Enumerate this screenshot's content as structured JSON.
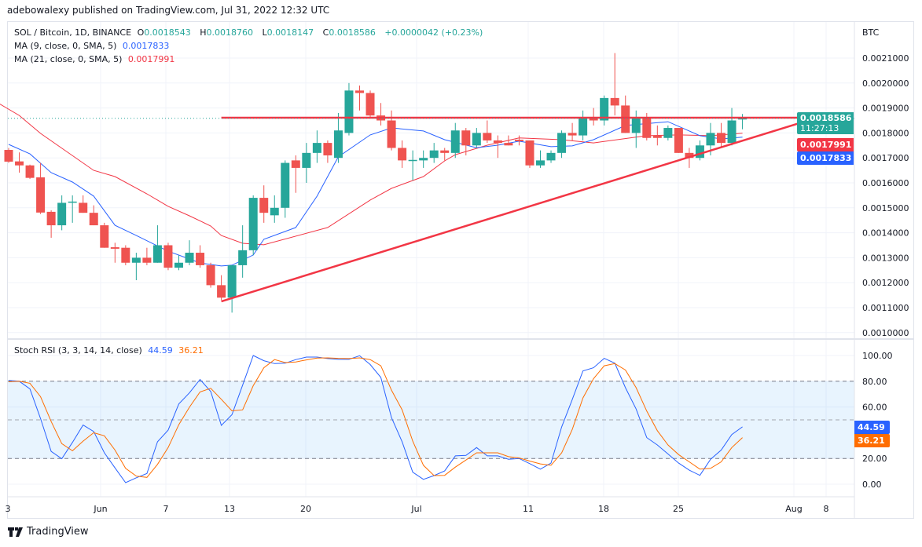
{
  "published": "adebowalexy published on TradingView.com, Jul 31, 2022 12:32 UTC",
  "legend": {
    "symbol": "SOL / Bitcoin, 1D, BINANCE",
    "o_label": "O",
    "o": "0.0018543",
    "h_label": "H",
    "h": "0.0018760",
    "l_label": "L",
    "l": "0.0018147",
    "c_label": "C",
    "c": "0.0018586",
    "change": "+0.0000042 (+0.23%)",
    "ma9_label": "MA (9, close, 0, SMA, 5)",
    "ma9_value": "0.0017833",
    "ma21_label": "MA (21, close, 0, SMA, 5)",
    "ma21_value": "0.0017991",
    "stoch_label": "Stoch RSI (3, 3, 14, 14, close)",
    "stoch_k": "44.59",
    "stoch_d": "36.21"
  },
  "price_axis": {
    "currency": "BTC",
    "ticks": [
      "0.0021000",
      "0.0020000",
      "0.0019000",
      "0.0018000",
      "0.0017000",
      "0.0016000",
      "0.0015000",
      "0.0014000",
      "0.0013000",
      "0.0012000",
      "0.0011000",
      "0.0010000"
    ],
    "last_price": "0.0018586",
    "countdown": "11:27:13",
    "ma21_badge": "0.0017991",
    "ma9_badge": "0.0017833"
  },
  "stoch_axis": {
    "ticks": [
      "100.00",
      "80.00",
      "60.00",
      "20.00",
      "0.00"
    ],
    "k_badge": "44.59",
    "d_badge": "36.21"
  },
  "time_axis": {
    "ticks": [
      "3",
      "Jun",
      "7",
      "13",
      "20",
      "Jul",
      "11",
      "18",
      "25",
      "Aug",
      "8"
    ]
  },
  "footer": {
    "brand": "TradingView"
  },
  "colors": {
    "up": "#26a69a",
    "down": "#ef5350",
    "ma9": "#2962ff",
    "ma21": "#f23645",
    "trendline": "#f23645",
    "stoch_k": "#2962ff",
    "stoch_d": "#ff6d00",
    "band": "#2196f3"
  },
  "chart_data": [
    {
      "type": "candlestick",
      "title": "SOL / Bitcoin, 1D, BINANCE",
      "interval": "1D",
      "start_date": "2022-05-23",
      "ylim": [
        0.001,
        0.00215
      ],
      "grid": true,
      "candles_ohlc": [
        [
          0.001732,
          0.00174,
          0.00168,
          0.001685
        ],
        [
          0.001686,
          0.001722,
          0.001641,
          0.00167
        ],
        [
          0.00167,
          0.001673,
          0.001616,
          0.00162
        ],
        [
          0.001622,
          0.00168,
          0.001475,
          0.001481
        ],
        [
          0.001484,
          0.00149,
          0.00138,
          0.00143
        ],
        [
          0.00143,
          0.00155,
          0.00141,
          0.00152
        ],
        [
          0.001521,
          0.00155,
          0.00144,
          0.001525
        ],
        [
          0.00152,
          0.00155,
          0.00148,
          0.00148
        ],
        [
          0.00148,
          0.00151,
          0.00143,
          0.00143
        ],
        [
          0.00143,
          0.00144,
          0.00134,
          0.00134
        ],
        [
          0.001342,
          0.00136,
          0.00128,
          0.001336
        ],
        [
          0.00134,
          0.00135,
          0.00127,
          0.00128
        ],
        [
          0.00128,
          0.00132,
          0.00121,
          0.0013
        ],
        [
          0.0013,
          0.00134,
          0.00127,
          0.00128
        ],
        [
          0.00128,
          0.00143,
          0.00128,
          0.00135
        ],
        [
          0.00135,
          0.00136,
          0.00125,
          0.00126
        ],
        [
          0.00126,
          0.00131,
          0.00125,
          0.00128
        ],
        [
          0.00128,
          0.00137,
          0.00127,
          0.00132
        ],
        [
          0.00132,
          0.00135,
          0.00126,
          0.00127
        ],
        [
          0.00127,
          0.00128,
          0.00118,
          0.00119
        ],
        [
          0.00119,
          0.00123,
          0.00113,
          0.00114
        ],
        [
          0.00114,
          0.00127,
          0.00108,
          0.00127
        ],
        [
          0.00127,
          0.00143,
          0.00122,
          0.00133
        ],
        [
          0.00133,
          0.00155,
          0.00131,
          0.00154
        ],
        [
          0.00154,
          0.00159,
          0.00144,
          0.00148
        ],
        [
          0.00147,
          0.00155,
          0.00144,
          0.0015
        ],
        [
          0.0015,
          0.00169,
          0.00146,
          0.00168
        ],
        [
          0.00169,
          0.00171,
          0.00156,
          0.00166
        ],
        [
          0.00166,
          0.00176,
          0.0016,
          0.00172
        ],
        [
          0.00172,
          0.00181,
          0.00168,
          0.00176
        ],
        [
          0.00176,
          0.00177,
          0.00168,
          0.00171
        ],
        [
          0.0017,
          0.00188,
          0.00168,
          0.00181
        ],
        [
          0.0018,
          0.002,
          0.00179,
          0.00197
        ],
        [
          0.00197,
          0.00199,
          0.00189,
          0.00196
        ],
        [
          0.00196,
          0.00197,
          0.00186,
          0.00187
        ],
        [
          0.00187,
          0.00192,
          0.00183,
          0.00185
        ],
        [
          0.00185,
          0.00189,
          0.00173,
          0.00174
        ],
        [
          0.00174,
          0.00177,
          0.00166,
          0.00169
        ],
        [
          0.001688,
          0.00173,
          0.00161,
          0.001692
        ],
        [
          0.00169,
          0.00173,
          0.00166,
          0.0017
        ],
        [
          0.0017,
          0.00176,
          0.00168,
          0.00173
        ],
        [
          0.00173,
          0.00174,
          0.00169,
          0.00172
        ],
        [
          0.00172,
          0.00184,
          0.0017,
          0.00181
        ],
        [
          0.00181,
          0.00182,
          0.00171,
          0.00175
        ],
        [
          0.00175,
          0.00182,
          0.00174,
          0.0018
        ],
        [
          0.0018,
          0.00185,
          0.00176,
          0.00177
        ],
        [
          0.00177,
          0.00179,
          0.0017,
          0.00176
        ],
        [
          0.00176,
          0.00179,
          0.00175,
          0.00175
        ],
        [
          0.001773,
          0.00179,
          0.00175,
          0.001767
        ],
        [
          0.00177,
          0.00177,
          0.00166,
          0.00167
        ],
        [
          0.00167,
          0.00173,
          0.00166,
          0.00169
        ],
        [
          0.00169,
          0.00173,
          0.00168,
          0.00172
        ],
        [
          0.00172,
          0.00181,
          0.0017,
          0.0018
        ],
        [
          0.0018,
          0.00184,
          0.00177,
          0.00179
        ],
        [
          0.00179,
          0.00189,
          0.00177,
          0.00186
        ],
        [
          0.00186,
          0.0019,
          0.00183,
          0.00185
        ],
        [
          0.00185,
          0.00195,
          0.00183,
          0.00194
        ],
        [
          0.00194,
          0.00212,
          0.00187,
          0.00191
        ],
        [
          0.00191,
          0.00195,
          0.0018,
          0.0018
        ],
        [
          0.0018,
          0.00189,
          0.00174,
          0.00186
        ],
        [
          0.00186,
          0.00188,
          0.00177,
          0.00178
        ],
        [
          0.00179,
          0.00183,
          0.00175,
          0.00178
        ],
        [
          0.00178,
          0.00183,
          0.00177,
          0.00182
        ],
        [
          0.00182,
          0.00182,
          0.00172,
          0.00172
        ],
        [
          0.00172,
          0.00174,
          0.00166,
          0.0017
        ],
        [
          0.0017,
          0.00177,
          0.00169,
          0.00175
        ],
        [
          0.00175,
          0.00184,
          0.00171,
          0.0018
        ],
        [
          0.0018,
          0.00184,
          0.00174,
          0.00176
        ],
        [
          0.00176,
          0.0019,
          0.00175,
          0.00185
        ],
        [
          0.0018543,
          0.001876,
          0.0018147,
          0.0018586
        ]
      ],
      "ma9": [
        [
          "2022-05-23",
          0.001754
        ],
        [
          "2022-05-25",
          0.001716
        ],
        [
          "2022-05-27",
          0.001641
        ],
        [
          "2022-05-29",
          0.001603
        ],
        [
          "2022-05-31",
          0.001547
        ],
        [
          "2022-06-02",
          0.00143
        ],
        [
          "2022-06-04",
          0.001389
        ],
        [
          "2022-06-07",
          0.001326
        ],
        [
          "2022-06-09",
          0.001295
        ],
        [
          "2022-06-10",
          0.001279
        ],
        [
          "2022-06-12",
          0.001267
        ],
        [
          "2022-06-13",
          0.00127
        ],
        [
          "2022-06-15",
          0.001311
        ],
        [
          "2022-06-16",
          0.001374
        ],
        [
          "2022-06-19",
          0.001421
        ],
        [
          "2022-06-21",
          0.001547
        ],
        [
          "2022-06-23",
          0.001704
        ],
        [
          "2022-06-26",
          0.001792
        ],
        [
          "2022-06-28",
          0.00182
        ],
        [
          "2022-07-01",
          0.001808
        ],
        [
          "2022-07-03",
          0.001773
        ],
        [
          "2022-07-06",
          0.001741
        ],
        [
          "2022-07-08",
          0.001751
        ],
        [
          "2022-07-10",
          0.001767
        ],
        [
          "2022-07-13",
          0.001745
        ],
        [
          "2022-07-15",
          0.001748
        ],
        [
          "2022-07-17",
          0.001773
        ],
        [
          "2022-07-20",
          0.00183
        ],
        [
          "2022-07-24",
          0.001845
        ],
        [
          "2022-07-27",
          0.001789
        ],
        [
          "2022-07-29",
          0.001776
        ],
        [
          "2022-07-31",
          0.0017833
        ]
      ],
      "ma21": [
        [
          "2022-05-22",
          0.00192
        ],
        [
          "2022-05-24",
          0.00187
        ],
        [
          "2022-05-26",
          0.001798
        ],
        [
          "2022-05-31",
          0.00165
        ],
        [
          "2022-06-02",
          0.001625
        ],
        [
          "2022-06-05",
          0.001556
        ],
        [
          "2022-06-07",
          0.001506
        ],
        [
          "2022-06-09",
          0.001468
        ],
        [
          "2022-06-11",
          0.001427
        ],
        [
          "2022-06-12",
          0.001389
        ],
        [
          "2022-06-14",
          0.001358
        ],
        [
          "2022-06-16",
          0.001352
        ],
        [
          "2022-06-22",
          0.001421
        ],
        [
          "2022-06-26",
          0.001531
        ],
        [
          "2022-06-28",
          0.001578
        ],
        [
          "2022-07-01",
          0.001625
        ],
        [
          "2022-07-03",
          0.001688
        ],
        [
          "2022-07-04",
          0.001713
        ],
        [
          "2022-07-07",
          0.001751
        ],
        [
          "2022-07-10",
          0.00178
        ],
        [
          "2022-07-14",
          0.001773
        ],
        [
          "2022-07-17",
          0.00176
        ],
        [
          "2022-07-22",
          0.001789
        ],
        [
          "2022-07-25",
          0.001792
        ],
        [
          "2022-07-28",
          0.001789
        ],
        [
          "2022-07-31",
          0.0017991
        ]
      ],
      "trendlines": [
        {
          "kind": "horizontal resistance",
          "from": [
            "2022-06-12",
            0.001861
          ],
          "to": [
            "2022-08-07",
            0.001861
          ]
        },
        {
          "kind": "ascending support",
          "from": [
            "2022-06-12",
            0.001125
          ],
          "to": [
            "2022-08-07",
            0.001861
          ]
        }
      ]
    },
    {
      "type": "line",
      "title": "Stoch RSI (3, 3, 14, 14, close)",
      "start_date": "2022-05-23",
      "ylim": [
        0,
        100
      ],
      "bands": [
        20,
        50,
        80
      ],
      "series": [
        {
          "name": "K",
          "values": [
            80.6,
            80,
            74,
            51,
            25.5,
            19.8,
            32.5,
            46,
            41,
            24.4,
            12.7,
            1.2,
            5,
            8.3,
            33,
            42,
            62.4,
            71,
            81.4,
            72,
            45.7,
            54,
            77,
            100,
            96,
            93.7,
            94,
            96.8,
            98.8,
            98.8,
            97.6,
            97,
            97,
            99.8,
            93,
            83,
            51.7,
            33,
            9.3,
            3.8,
            6.7,
            10.3,
            22,
            22.4,
            28.5,
            22,
            22,
            19.4,
            20,
            16,
            11.7,
            16.4,
            44.6,
            65.9,
            88,
            90.5,
            97.8,
            94,
            75,
            58.4,
            36.2,
            30.5,
            23.5,
            16.4,
            10.9,
            6.9,
            19.4,
            26.5,
            38.6,
            44.59
          ]
        },
        {
          "name": "D",
          "values": [
            79.6,
            80,
            78.4,
            68,
            48.7,
            31.5,
            26,
            33.5,
            40,
            37.6,
            26.5,
            12.3,
            6.3,
            5.3,
            15.4,
            28.5,
            46.3,
            59.8,
            71.7,
            74.5,
            66,
            57,
            57.8,
            76.6,
            90.5,
            96.8,
            94.5,
            95,
            96.6,
            98,
            98.2,
            97.8,
            97.6,
            98.2,
            96.8,
            92,
            73,
            57.8,
            33.5,
            14.7,
            6.7,
            6.9,
            13.3,
            18.8,
            24.4,
            24.4,
            24.4,
            21.4,
            20.4,
            18,
            15.8,
            14.7,
            24.4,
            42.6,
            67,
            82,
            92,
            93.7,
            88.7,
            75,
            56.8,
            41.6,
            30.5,
            23,
            17.4,
            11.7,
            12.3,
            17.4,
            28.5,
            36.21
          ]
        }
      ]
    }
  ]
}
